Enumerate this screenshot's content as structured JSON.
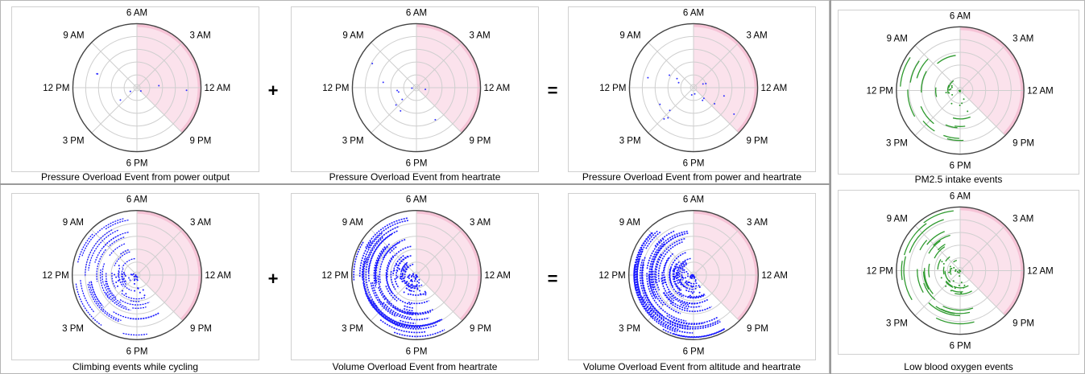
{
  "operators": [
    "+",
    "=",
    "+",
    "="
  ],
  "colors": {
    "shade": "#fbe2ec",
    "shade_edge": "#f3a9c4",
    "grid": "#cfcfcf",
    "outer_ring": "#444444",
    "pressure_points": "#3333ff",
    "volume_points": "#1a1aff",
    "env_points": "#2e9a2e"
  },
  "chart_data": [
    {
      "id": "p1",
      "type": "scatter",
      "coordinate_system": "polar",
      "caption": "Pressure Overload Event from power output",
      "angular_ticks": [
        "6 AM",
        "3 AM",
        "12 AM",
        "9 PM",
        "6 PM",
        "3 PM",
        "12 PM",
        "9 AM"
      ],
      "radial_rings": 5,
      "shaded_sector": {
        "from": "6 AM",
        "to": "9 PM",
        "via": "12 AM"
      },
      "series_color": "#3333ff",
      "density": 0.06
    },
    {
      "id": "p2",
      "type": "scatter",
      "coordinate_system": "polar",
      "caption": "Pressure Overload Event from heartrate",
      "angular_ticks": [
        "6 AM",
        "3 AM",
        "12 AM",
        "9 PM",
        "6 PM",
        "3 PM",
        "12 PM",
        "9 AM"
      ],
      "radial_rings": 5,
      "shaded_sector": {
        "from": "6 AM",
        "to": "9 PM",
        "via": "12 AM"
      },
      "series_color": "#3333ff",
      "density": 0.08
    },
    {
      "id": "p3",
      "type": "scatter",
      "coordinate_system": "polar",
      "caption": "Pressure Overload Event from power and heartrate",
      "angular_ticks": [
        "6 AM",
        "3 AM",
        "12 AM",
        "9 PM",
        "6 PM",
        "3 PM",
        "12 PM",
        "9 AM"
      ],
      "radial_rings": 5,
      "shaded_sector": {
        "from": "6 AM",
        "to": "9 PM",
        "via": "12 AM"
      },
      "series_color": "#3333ff",
      "density": 0.14
    },
    {
      "id": "p4",
      "type": "scatter",
      "coordinate_system": "polar",
      "caption": "PM2.5 intake events",
      "angular_ticks": [
        "6 AM",
        "3 AM",
        "12 AM",
        "9 PM",
        "6 PM",
        "3 PM",
        "12 PM",
        "9 AM"
      ],
      "radial_rings": 5,
      "shaded_sector": {
        "from": "6 AM",
        "to": "9 PM",
        "via": "12 AM"
      },
      "series_color": "#2e9a2e",
      "density": 0.25
    },
    {
      "id": "p5",
      "type": "scatter",
      "coordinate_system": "polar",
      "caption": "Climbing events while cycling",
      "angular_ticks": [
        "6 AM",
        "3 AM",
        "12 AM",
        "9 PM",
        "6 PM",
        "3 PM",
        "12 PM",
        "9 AM"
      ],
      "radial_rings": 5,
      "shaded_sector": {
        "from": "6 AM",
        "to": "9 PM",
        "via": "12 AM"
      },
      "series_color": "#1a1aff",
      "density": 0.55
    },
    {
      "id": "p6",
      "type": "scatter",
      "coordinate_system": "polar",
      "caption": "Volume Overload Event from heartrate",
      "angular_ticks": [
        "6 AM",
        "3 AM",
        "12 AM",
        "9 PM",
        "6 PM",
        "3 PM",
        "12 PM",
        "9 AM"
      ],
      "radial_rings": 5,
      "shaded_sector": {
        "from": "6 AM",
        "to": "9 PM",
        "via": "12 AM"
      },
      "series_color": "#1a1aff",
      "density": 0.9
    },
    {
      "id": "p7",
      "type": "scatter",
      "coordinate_system": "polar",
      "caption": "Volume Overload Event from altitude and heartrate",
      "angular_ticks": [
        "6 AM",
        "3 AM",
        "12 AM",
        "9 PM",
        "6 PM",
        "3 PM",
        "12 PM",
        "9 AM"
      ],
      "radial_rings": 5,
      "shaded_sector": {
        "from": "6 AM",
        "to": "9 PM",
        "via": "12 AM"
      },
      "series_color": "#1a1aff",
      "density": 1.0
    },
    {
      "id": "p8",
      "type": "scatter",
      "coordinate_system": "polar",
      "caption": "Low blood oxygen events",
      "angular_ticks": [
        "6 AM",
        "3 AM",
        "12 AM",
        "9 PM",
        "6 PM",
        "3 PM",
        "12 PM",
        "9 AM"
      ],
      "radial_rings": 5,
      "shaded_sector": {
        "from": "6 AM",
        "to": "9 PM",
        "via": "12 AM"
      },
      "series_color": "#2e9a2e",
      "density": 0.45
    }
  ]
}
